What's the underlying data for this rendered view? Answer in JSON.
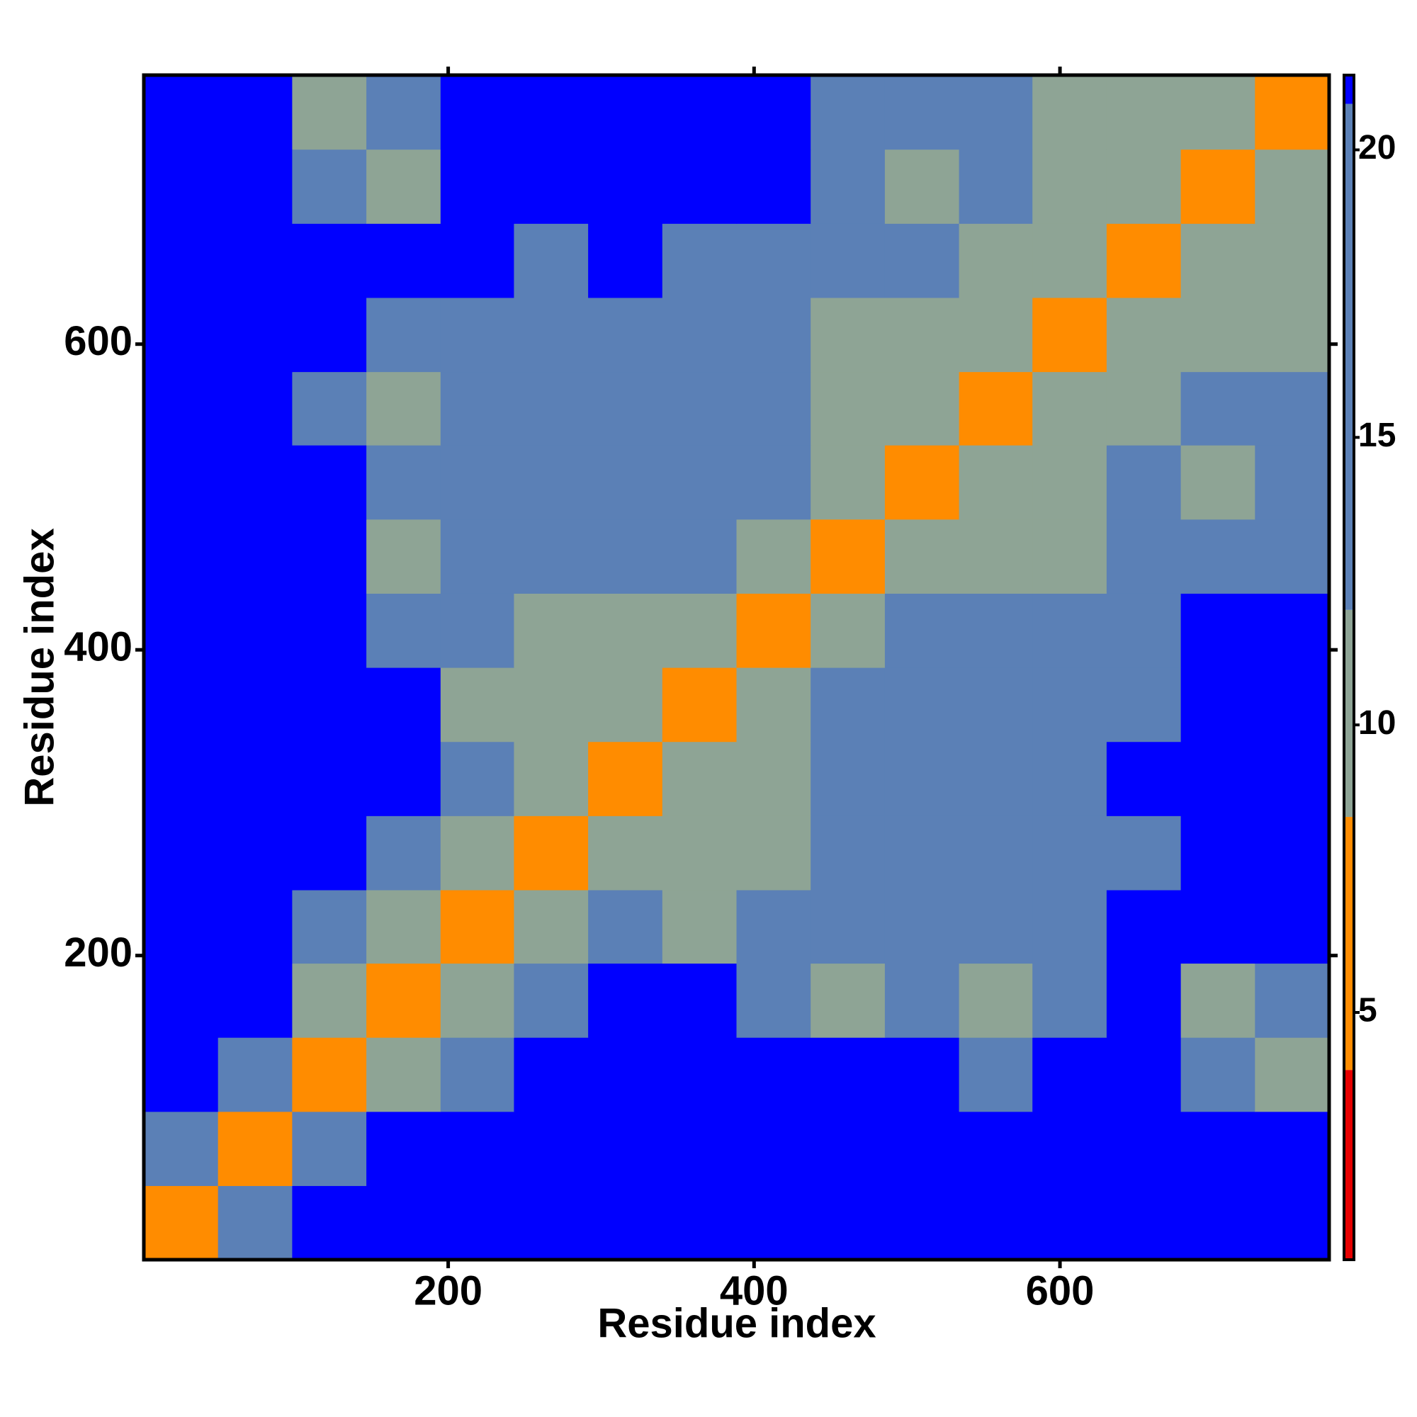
{
  "chart_data": {
    "type": "heatmap",
    "xlabel": "Residue index",
    "ylabel": "Residue index",
    "xlim": [
      1,
      776
    ],
    "ylim": [
      1,
      776
    ],
    "xticks": [
      200,
      400,
      600
    ],
    "yticks": [
      200,
      400,
      600
    ],
    "zlim": [
      0.7,
      21.3
    ],
    "zticks": [
      5,
      10,
      15,
      20
    ],
    "colorscale": [
      [
        4,
        "#e60000"
      ],
      [
        8.4,
        "#ff8c00"
      ],
      [
        12,
        "#8ea495"
      ],
      [
        20.8,
        "#5b80b6"
      ],
      [
        21.3,
        "#0000ff"
      ]
    ],
    "x": [
      25,
      74,
      122,
      171,
      219,
      267,
      316,
      364,
      413,
      461,
      510,
      558,
      606,
      655,
      703,
      752
    ],
    "y": [
      25,
      74,
      122,
      171,
      219,
      267,
      316,
      364,
      413,
      461,
      510,
      558,
      606,
      655,
      703,
      752
    ],
    "z": [
      [
        6,
        19,
        21,
        21,
        21,
        21,
        21,
        21,
        21,
        21,
        21,
        21,
        21,
        21,
        21,
        21
      ],
      [
        19,
        6,
        19,
        21,
        21,
        21,
        21,
        21,
        21,
        21,
        21,
        21,
        21,
        21,
        21,
        21
      ],
      [
        21,
        19,
        6,
        12,
        19,
        21,
        21,
        21,
        21,
        21,
        21,
        19,
        21,
        21,
        19,
        12
      ],
      [
        21,
        21,
        12,
        6,
        12,
        19,
        21,
        21,
        19,
        12,
        19,
        12,
        19,
        21,
        12,
        19
      ],
      [
        21,
        21,
        19,
        12,
        6,
        12,
        19,
        12,
        19,
        19,
        19,
        19,
        19,
        21,
        21,
        21
      ],
      [
        21,
        21,
        21,
        19,
        12,
        6,
        12,
        12,
        12,
        19,
        19,
        19,
        19,
        19,
        21,
        21
      ],
      [
        21,
        21,
        21,
        21,
        19,
        12,
        6,
        12,
        12,
        19,
        19,
        19,
        19,
        21,
        21,
        21
      ],
      [
        21,
        21,
        21,
        21,
        12,
        12,
        12,
        6,
        12,
        19,
        19,
        19,
        19,
        19,
        21,
        21
      ],
      [
        21,
        21,
        21,
        19,
        19,
        12,
        12,
        12,
        6,
        12,
        19,
        19,
        19,
        19,
        21,
        21
      ],
      [
        21,
        21,
        21,
        12,
        19,
        19,
        19,
        19,
        12,
        6,
        12,
        12,
        12,
        19,
        19,
        19
      ],
      [
        21,
        21,
        21,
        19,
        19,
        19,
        19,
        19,
        19,
        12,
        6,
        12,
        12,
        19,
        12,
        19
      ],
      [
        21,
        21,
        19,
        12,
        19,
        19,
        19,
        19,
        19,
        12,
        12,
        6,
        12,
        12,
        19,
        19
      ],
      [
        21,
        21,
        21,
        19,
        19,
        19,
        19,
        19,
        19,
        12,
        12,
        12,
        6,
        12,
        12,
        12
      ],
      [
        21,
        21,
        21,
        21,
        21,
        19,
        21,
        19,
        19,
        19,
        19,
        12,
        12,
        6,
        12,
        12
      ],
      [
        21,
        21,
        19,
        12,
        21,
        21,
        21,
        21,
        21,
        19,
        12,
        19,
        12,
        12,
        6,
        12
      ],
      [
        21,
        21,
        12,
        19,
        21,
        21,
        21,
        21,
        21,
        19,
        19,
        19,
        12,
        12,
        12,
        6
      ]
    ]
  }
}
